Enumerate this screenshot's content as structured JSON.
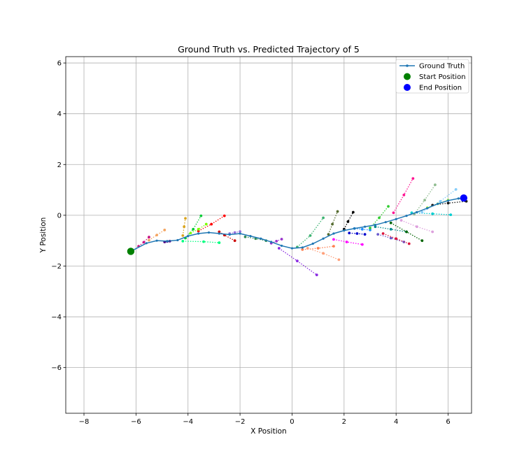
{
  "chart_data": {
    "type": "scatter",
    "title": "Ground Truth vs. Predicted Trajectory of 5",
    "xlabel": "X Position",
    "ylabel": "Y Position",
    "xlim": [
      -8.7,
      6.9
    ],
    "ylim": [
      -7.8,
      6.25
    ],
    "xticks": [
      -8,
      -6,
      -4,
      -2,
      0,
      2,
      4,
      6
    ],
    "yticks": [
      -6,
      -4,
      -2,
      0,
      2,
      4,
      6
    ],
    "xtick_labels": [
      "−8",
      "−6",
      "−4",
      "−2",
      "0",
      "2",
      "4",
      "6"
    ],
    "ytick_labels": [
      "−6",
      "−4",
      "−2",
      "0",
      "2",
      "4",
      "6"
    ],
    "grid": true,
    "legend_position": "top-right",
    "legend": [
      {
        "label": "Ground Truth",
        "kind": "line-marker",
        "color": "#1f77b4"
      },
      {
        "label": "Start Position",
        "kind": "circle",
        "color": "#008000"
      },
      {
        "label": "End Position",
        "kind": "circle",
        "color": "#0000ff"
      }
    ],
    "ground_truth": {
      "color": "#1f77b4",
      "x": [
        -6.2,
        -5.6,
        -5.2,
        -4.8,
        -4.4,
        -4.0,
        -3.6,
        -3.2,
        -2.8,
        -2.4,
        -2.0,
        -1.6,
        -1.2,
        -0.8,
        -0.4,
        0.0,
        0.4,
        0.8,
        1.2,
        1.6,
        2.0,
        2.4,
        2.8,
        3.2,
        3.6,
        4.0,
        4.4,
        4.8,
        5.2,
        5.6,
        6.0,
        6.4,
        6.6
      ],
      "y": [
        -1.42,
        -1.1,
        -1.0,
        -1.02,
        -0.98,
        -0.82,
        -0.72,
        -0.68,
        -0.72,
        -0.76,
        -0.72,
        -0.82,
        -0.92,
        -1.05,
        -1.2,
        -1.3,
        -1.27,
        -1.12,
        -0.92,
        -0.72,
        -0.6,
        -0.52,
        -0.45,
        -0.38,
        -0.27,
        -0.15,
        -0.02,
        0.12,
        0.28,
        0.45,
        0.58,
        0.66,
        0.68
      ]
    },
    "start": {
      "x": -6.2,
      "y": -1.42,
      "color": "#008000"
    },
    "end": {
      "x": 6.6,
      "y": 0.68,
      "color": "#0000ff"
    },
    "predictions": [
      {
        "color": "#c71585",
        "x": [
          -5.9,
          -5.7,
          -5.5
        ],
        "y": [
          -1.22,
          -1.06,
          -0.86
        ]
      },
      {
        "color": "#f4a460",
        "x": [
          -5.5,
          -5.2,
          -4.9
        ],
        "y": [
          -0.98,
          -0.78,
          -0.58
        ]
      },
      {
        "color": "#4b0082",
        "x": [
          -4.9,
          -4.8,
          -4.7
        ],
        "y": [
          -1.05,
          -1.03,
          -1.02
        ]
      },
      {
        "color": "#daa520",
        "x": [
          -4.2,
          -4.15,
          -4.1
        ],
        "y": [
          -0.8,
          -0.45,
          -0.12
        ]
      },
      {
        "color": "#00cc33",
        "x": [
          -4.1,
          -3.8,
          -3.5
        ],
        "y": [
          -0.9,
          -0.55,
          -0.02
        ]
      },
      {
        "color": "#00ff7f",
        "x": [
          -4.2,
          -3.4,
          -2.8
        ],
        "y": [
          -1.02,
          -1.04,
          -1.08
        ]
      },
      {
        "color": "#ff0000",
        "x": [
          -3.6,
          -3.1,
          -2.6
        ],
        "y": [
          -0.62,
          -0.35,
          -0.02
        ]
      },
      {
        "color": "#7cfc00",
        "x": [
          -3.9,
          -3.6,
          -3.3
        ],
        "y": [
          -0.7,
          -0.55,
          -0.35
        ]
      },
      {
        "color": "#cc0000",
        "x": [
          -2.8,
          -2.6,
          -2.2
        ],
        "y": [
          -0.65,
          -0.78,
          -1.0
        ]
      },
      {
        "color": "#9370db",
        "x": [
          -2.4,
          -2.2,
          -2.0
        ],
        "y": [
          -0.72,
          -0.68,
          -0.64
        ]
      },
      {
        "color": "#2e8b57",
        "x": [
          -1.8,
          -1.4,
          -1.0
        ],
        "y": [
          -0.85,
          -0.92,
          -1.0
        ]
      },
      {
        "color": "#9932cc",
        "x": [
          -0.8,
          -0.6,
          -0.4
        ],
        "y": [
          -1.1,
          -1.02,
          -0.94
        ]
      },
      {
        "color": "#8a2be2",
        "x": [
          -0.5,
          0.2,
          0.95
        ],
        "y": [
          -1.3,
          -1.8,
          -2.35
        ]
      },
      {
        "color": "#3cb371",
        "x": [
          0.2,
          0.7,
          1.2
        ],
        "y": [
          -1.25,
          -0.8,
          -0.1
        ]
      },
      {
        "color": "#ff7f50",
        "x": [
          0.4,
          1.0,
          1.6
        ],
        "y": [
          -1.35,
          -1.3,
          -1.22
        ]
      },
      {
        "color": "#ffa07a",
        "x": [
          0.6,
          1.2,
          1.8
        ],
        "y": [
          -1.3,
          -1.5,
          -1.75
        ]
      },
      {
        "color": "#556b2f",
        "x": [
          1.4,
          1.55,
          1.75
        ],
        "y": [
          -0.75,
          -0.35,
          0.15
        ]
      },
      {
        "color": "#000000",
        "x": [
          2.0,
          2.15,
          2.35
        ],
        "y": [
          -0.55,
          -0.25,
          0.12
        ]
      },
      {
        "color": "#ff00ff",
        "x": [
          1.6,
          2.1,
          2.7
        ],
        "y": [
          -0.95,
          -1.05,
          -1.15
        ]
      },
      {
        "color": "#0000cd",
        "x": [
          2.2,
          2.5,
          2.8
        ],
        "y": [
          -0.7,
          -0.72,
          -0.75
        ]
      },
      {
        "color": "#1e90ff",
        "x": [
          2.4,
          2.7,
          3.0
        ],
        "y": [
          -0.52,
          -0.55,
          -0.58
        ]
      },
      {
        "color": "#32cd32",
        "x": [
          3.0,
          3.35,
          3.7
        ],
        "y": [
          -0.5,
          -0.1,
          0.35
        ]
      },
      {
        "color": "#008b8b",
        "x": [
          3.2,
          3.8,
          4.4
        ],
        "y": [
          -0.45,
          -0.55,
          -0.65
        ]
      },
      {
        "color": "#6a5acd",
        "x": [
          3.3,
          3.8,
          4.3
        ],
        "y": [
          -0.75,
          -0.9,
          -1.05
        ]
      },
      {
        "color": "#dc143c",
        "x": [
          3.5,
          4.0,
          4.5
        ],
        "y": [
          -0.72,
          -0.92,
          -1.12
        ]
      },
      {
        "color": "#ff1493",
        "x": [
          3.9,
          4.3,
          4.65
        ],
        "y": [
          0.1,
          0.8,
          1.45
        ]
      },
      {
        "color": "#006400",
        "x": [
          3.8,
          4.4,
          5.0
        ],
        "y": [
          -0.3,
          -0.65,
          -1.0
        ]
      },
      {
        "color": "#dda0dd",
        "x": [
          4.2,
          4.8,
          5.4
        ],
        "y": [
          -0.2,
          -0.45,
          -0.65
        ]
      },
      {
        "color": "#8fbc8f",
        "x": [
          4.7,
          5.1,
          5.5
        ],
        "y": [
          0.05,
          0.6,
          1.2
        ]
      },
      {
        "color": "#00ced1",
        "x": [
          4.6,
          5.4,
          6.1
        ],
        "y": [
          0.1,
          0.06,
          0.02
        ]
      },
      {
        "color": "#87cefa",
        "x": [
          5.0,
          5.7,
          6.3
        ],
        "y": [
          0.12,
          0.55,
          1.02
        ]
      },
      {
        "color": "#adff2f",
        "x": [
          5.2,
          5.6,
          6.0
        ],
        "y": [
          0.3,
          0.45,
          0.6
        ]
      },
      {
        "color": "#1a1a1a",
        "x": [
          5.4,
          6.0,
          6.7
        ],
        "y": [
          0.4,
          0.48,
          0.55
        ]
      }
    ]
  }
}
